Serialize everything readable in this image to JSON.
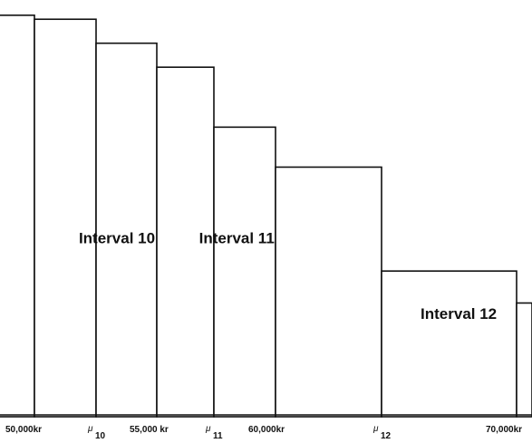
{
  "chart_data": {
    "type": "bar",
    "title": "",
    "xlabel": "",
    "ylabel": "",
    "grid": false,
    "legend": "none",
    "bars": [
      {
        "x0": 47500,
        "x1": 50000,
        "height": 100
      },
      {
        "x0": 50000,
        "x1": 52500,
        "height": 99
      },
      {
        "x0": 52500,
        "x1": 55000,
        "height": 93
      },
      {
        "x0": 55000,
        "x1": 57500,
        "height": 87
      },
      {
        "x0": 57500,
        "x1": 60000,
        "height": 72
      },
      {
        "x0": 60000,
        "x1": 62500,
        "height": 62
      },
      {
        "x0": 62500,
        "x1": 67000,
        "height": 36
      },
      {
        "x0": 67000,
        "x1": 70000,
        "height": 28
      }
    ],
    "ylim": [
      0,
      102
    ],
    "xlim": [
      48500,
      70000
    ],
    "tick_labels": [
      {
        "x": 50000,
        "text": "50,000kr"
      },
      {
        "x": 55000,
        "text": "55,000 kr"
      },
      {
        "x": 60000,
        "text": "60,000kr"
      },
      {
        "x": 70000,
        "text": "70,000kr"
      }
    ],
    "mu_markers": [
      {
        "x": 52500,
        "symbol": "μ",
        "subscript": "10"
      },
      {
        "x": 57500,
        "symbol": "μ",
        "subscript": "11"
      },
      {
        "x": 62500,
        "symbol": "μ",
        "subscript": "12"
      }
    ],
    "interval_labels": [
      {
        "text": "Interval 10",
        "x": 51800,
        "y": 43
      },
      {
        "text": "Interval 11",
        "x": 56850,
        "y": 43
      },
      {
        "text": "Interval 12",
        "x": 63800,
        "y": 24
      }
    ]
  }
}
